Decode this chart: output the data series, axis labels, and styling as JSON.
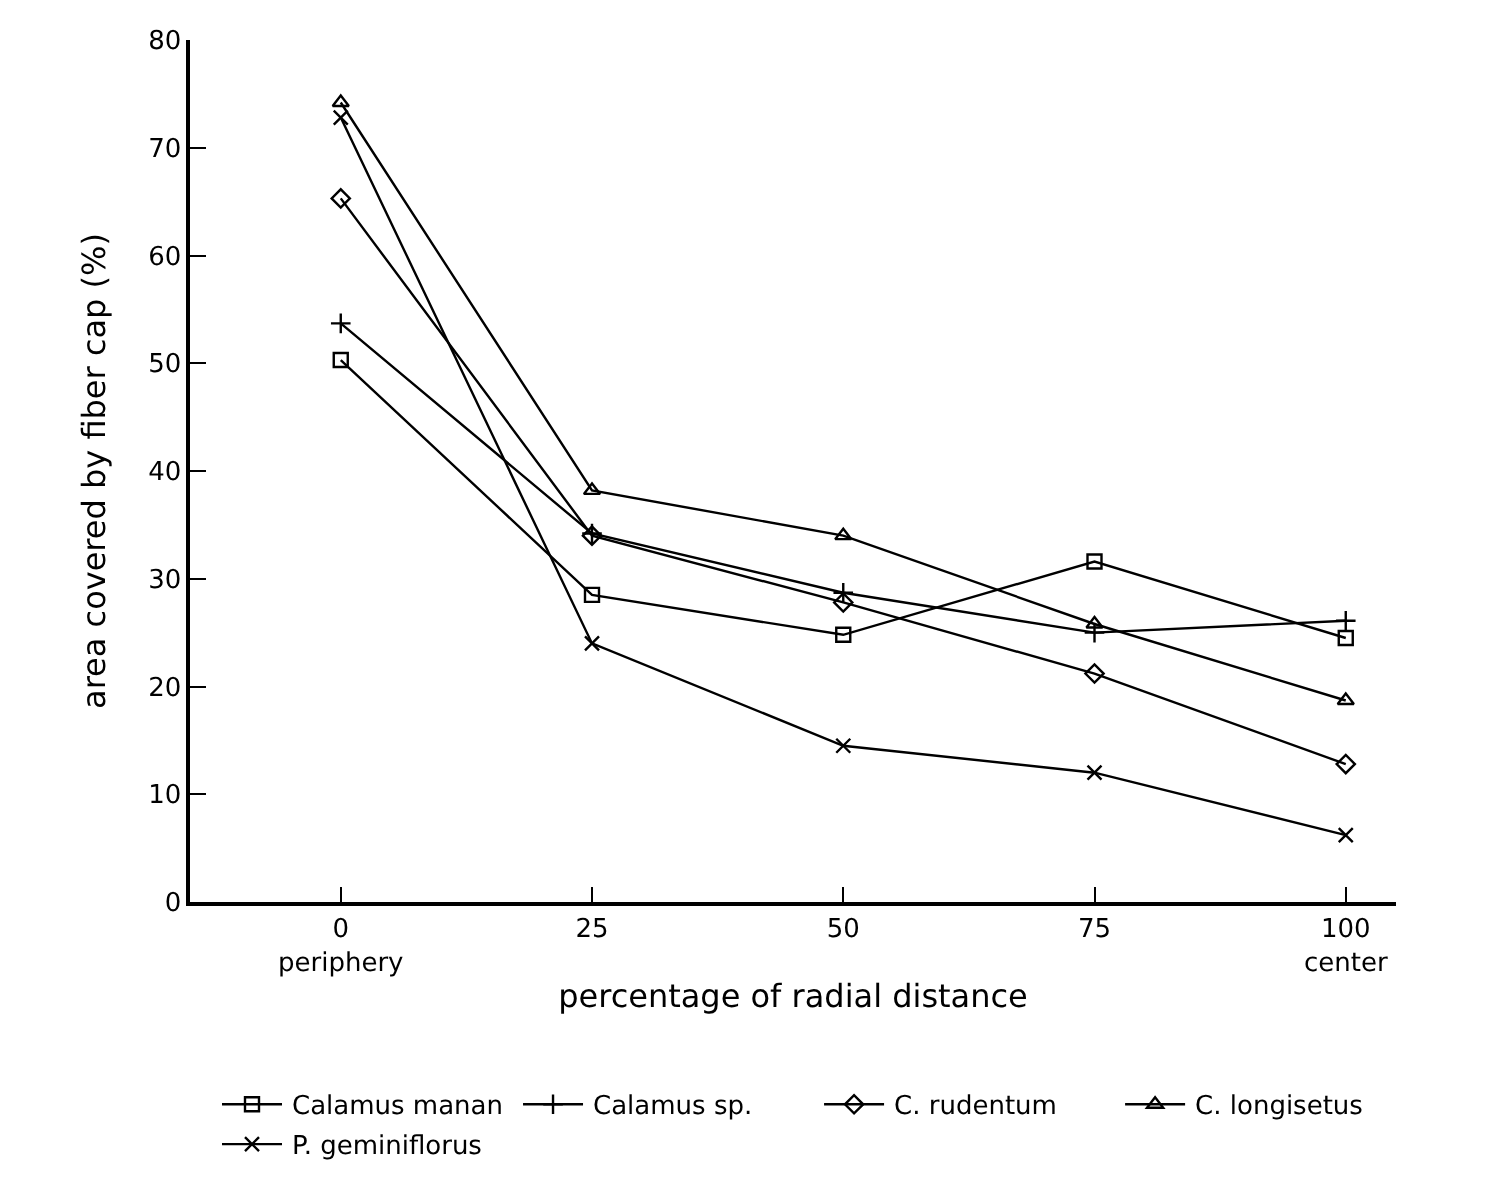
{
  "chart_data": {
    "type": "line",
    "xlabel": "percentage of radial distance",
    "ylabel": "area covered by fiber cap (%)",
    "x": [
      0,
      25,
      50,
      75,
      100
    ],
    "series": [
      {
        "name": "Calamus manan",
        "color": "#000000",
        "marker": "square",
        "values": [
          50.3,
          28.5,
          24.8,
          31.6,
          24.5
        ]
      },
      {
        "name": "Calamus sp.",
        "color": "#000000",
        "marker": "cross",
        "values": [
          53.7,
          34.2,
          28.7,
          25,
          26.1
        ]
      },
      {
        "name": "C. rudentum",
        "color": "#000000",
        "marker": "diamond",
        "values": [
          65.3,
          34,
          27.8,
          21.2,
          12.8
        ]
      },
      {
        "name": "C. longisetus",
        "color": "#000000",
        "marker": "triangle",
        "values": [
          74.2,
          38.2,
          34,
          25.8,
          18.7
        ]
      },
      {
        "name": "P. geminiflorus",
        "color": "#000000",
        "marker": "x",
        "values": [
          72.8,
          24,
          14.5,
          12,
          6.2
        ]
      }
    ],
    "xlim": [
      -15,
      105
    ],
    "xticks": [
      {
        "value": 0,
        "label": "0\nperiphery"
      },
      25,
      50,
      75,
      {
        "value": 100,
        "label": "100\ncenter"
      }
    ],
    "ylim": [
      0,
      80
    ],
    "yticks": [
      0,
      10,
      20,
      30,
      40,
      50,
      60,
      70,
      80
    ],
    "grid": false,
    "legend": "bottom",
    "line_style": "solid"
  }
}
